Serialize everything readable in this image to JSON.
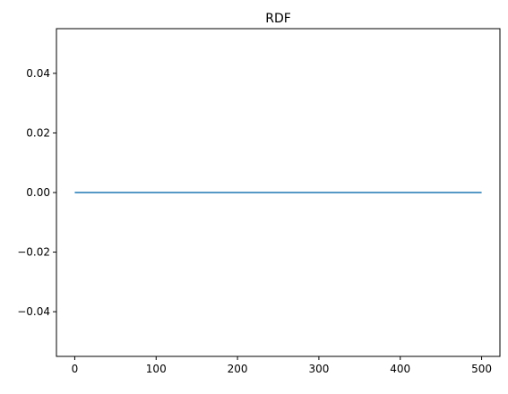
{
  "chart_data": {
    "type": "line",
    "title": "RDF",
    "xlabel": "",
    "ylabel": "",
    "xlim": [
      -22.5,
      522.5
    ],
    "ylim": [
      -0.055,
      0.055
    ],
    "x_ticks": [
      0,
      100,
      200,
      300,
      400,
      500
    ],
    "x_tick_labels": [
      "0",
      "100",
      "200",
      "300",
      "400",
      "500"
    ],
    "y_ticks": [
      0.04,
      0.02,
      0.0,
      -0.02,
      -0.04
    ],
    "y_tick_labels": [
      "0.04",
      "0.02",
      "0.00",
      "−0.02",
      "−0.04"
    ],
    "grid": false,
    "series": [
      {
        "color": "#1f77b4",
        "x": [
          0,
          500
        ],
        "y": [
          0,
          0
        ]
      }
    ]
  }
}
